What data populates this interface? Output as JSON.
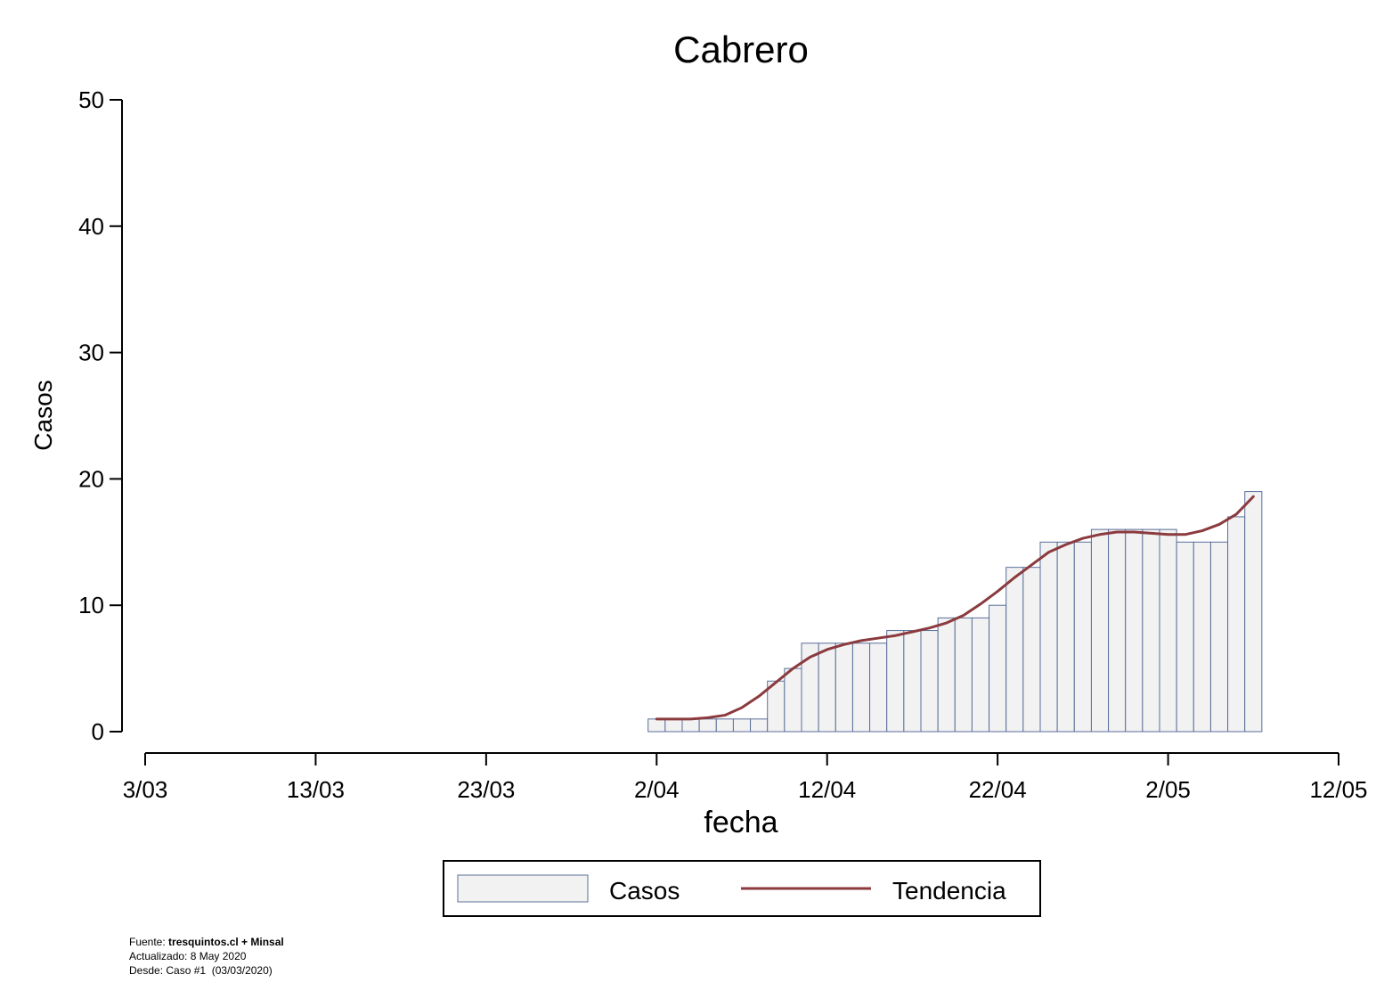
{
  "chart_data": {
    "type": "bar",
    "title": "Cabrero",
    "xlabel": "fecha",
    "ylabel": "Casos",
    "ylim": [
      0,
      50
    ],
    "yticks": [
      0,
      10,
      20,
      30,
      40,
      50
    ],
    "xticks": [
      "3/03",
      "13/03",
      "23/03",
      "2/04",
      "12/04",
      "22/04",
      "2/05",
      "12/05"
    ],
    "xlim": [
      "2020-03-03",
      "2020-05-12"
    ],
    "grid": false,
    "legend_position": "bottom",
    "bar_dates": [
      "2020-04-02",
      "2020-04-03",
      "2020-04-04",
      "2020-04-05",
      "2020-04-06",
      "2020-04-07",
      "2020-04-08",
      "2020-04-09",
      "2020-04-10",
      "2020-04-11",
      "2020-04-12",
      "2020-04-13",
      "2020-04-14",
      "2020-04-15",
      "2020-04-16",
      "2020-04-17",
      "2020-04-18",
      "2020-04-19",
      "2020-04-20",
      "2020-04-21",
      "2020-04-22",
      "2020-04-23",
      "2020-04-24",
      "2020-04-25",
      "2020-04-26",
      "2020-04-27",
      "2020-04-28",
      "2020-04-29",
      "2020-04-30",
      "2020-05-01",
      "2020-05-02",
      "2020-05-03",
      "2020-05-04",
      "2020-05-05",
      "2020-05-06",
      "2020-05-07"
    ],
    "series": [
      {
        "name": "Casos",
        "type": "bar",
        "color": "#f2f2f2",
        "edge_color": "#5a6f9a",
        "values": [
          1,
          1,
          1,
          1,
          1,
          1,
          1,
          4,
          5,
          7,
          7,
          7,
          7,
          7,
          8,
          8,
          8,
          9,
          9,
          9,
          10,
          13,
          13,
          15,
          15,
          15,
          16,
          16,
          16,
          16,
          16,
          15,
          15,
          15,
          17,
          19
        ]
      },
      {
        "name": "Tendencia",
        "type": "line",
        "color": "#8b3a3e",
        "values": [
          1.0,
          1.0,
          1.0,
          1.1,
          1.3,
          1.9,
          2.8,
          3.9,
          5.0,
          5.9,
          6.5,
          6.9,
          7.2,
          7.4,
          7.6,
          7.9,
          8.2,
          8.6,
          9.2,
          10.1,
          11.1,
          12.2,
          13.2,
          14.2,
          14.8,
          15.3,
          15.6,
          15.8,
          15.8,
          15.7,
          15.6,
          15.6,
          15.9,
          16.4,
          17.2,
          18.6
        ]
      }
    ]
  },
  "footer": {
    "source_prefix": "Fuente: ",
    "source_bold": "tresquintos.cl + Minsal",
    "updated": "Actualizado: 8 May 2020",
    "since": "Desde: Caso #1  (03/03/2020)"
  }
}
